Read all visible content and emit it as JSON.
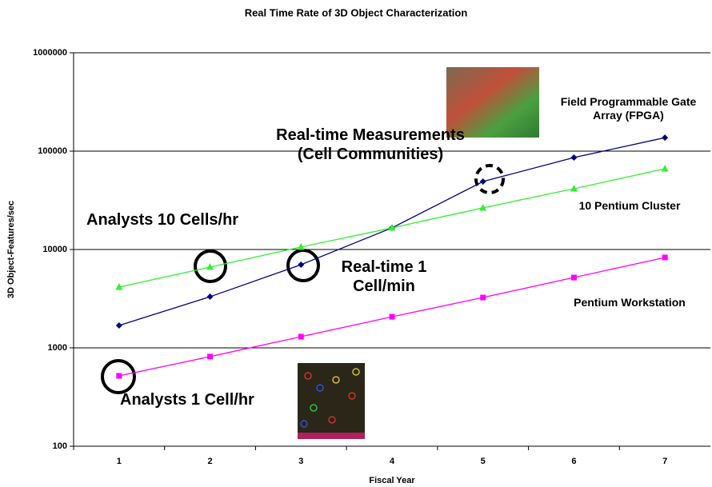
{
  "chart_data": {
    "type": "line",
    "title": "Real Time Rate of 3D Object Characterization",
    "x_label": "Fiscal Year",
    "y_label": "3D Object-Features/sec",
    "categories": [
      "1",
      "2",
      "3",
      "4",
      "5",
      "6",
      "7"
    ],
    "log_scale_y": true,
    "grid": true,
    "ylim": [
      100,
      1000000
    ],
    "yticks": [
      100,
      1000,
      10000,
      100000,
      1000000
    ],
    "series": [
      {
        "name": "Field Programmable Gate Array (FPGA)",
        "color": "#000080",
        "marker": "diamond",
        "values": [
          1690,
          3310,
          7010,
          16600,
          49100,
          86100,
          137000
        ]
      },
      {
        "name": "10 Pentium Cluster",
        "color": "#33ee33",
        "marker": "triangle",
        "values": [
          4150,
          6620,
          10600,
          16600,
          26500,
          41500,
          66200
        ]
      },
      {
        "name": "Pentium Workstation",
        "color": "#ff00ff",
        "marker": "square",
        "values": [
          519,
          815,
          1300,
          2070,
          3250,
          5190,
          8300
        ]
      }
    ],
    "annotations": [
      "Analysts 10 Cells/hr",
      "Real-time Measurements (Cell Communities)",
      "Real-time 1 Cell/min",
      "Analysts 1 Cell/hr"
    ]
  }
}
